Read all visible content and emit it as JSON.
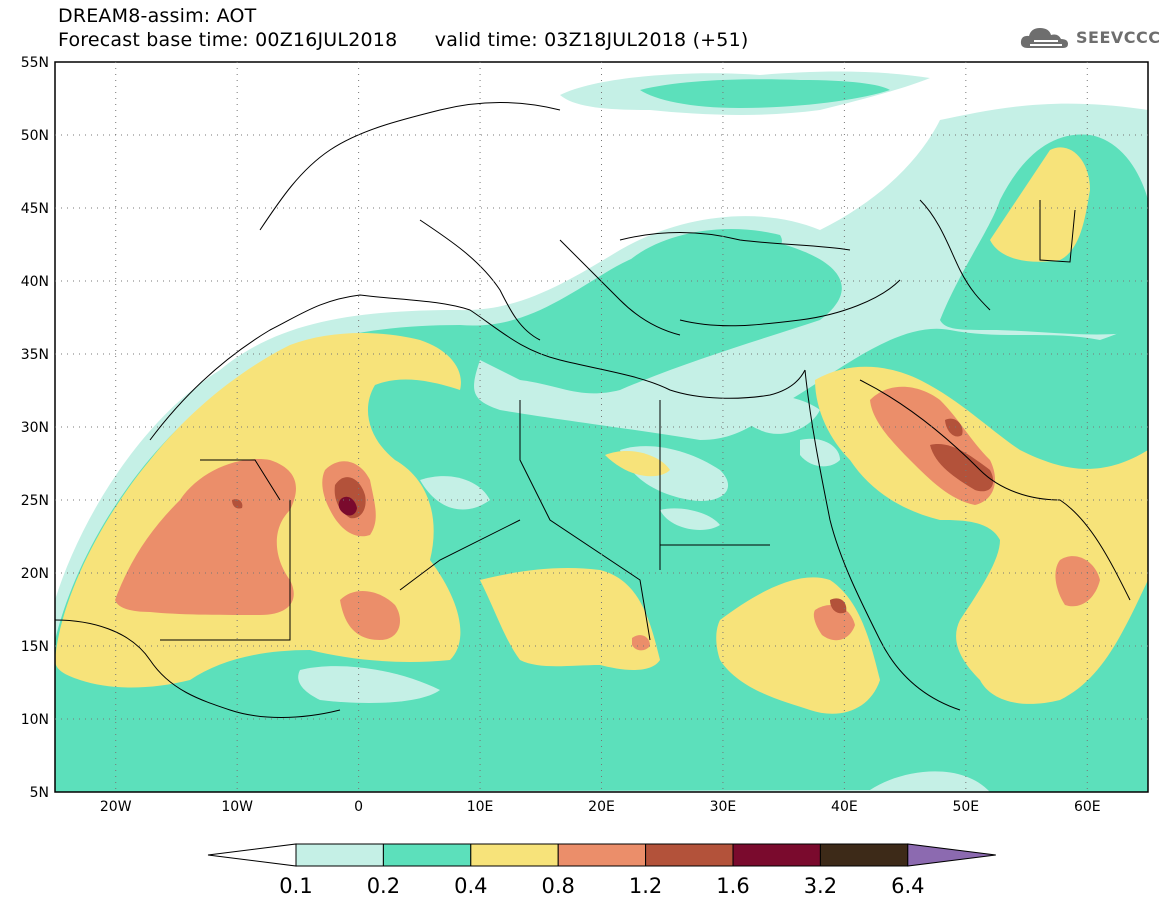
{
  "header": {
    "title": "DREAM8-assim: AOT",
    "base_time": "Forecast base time: 00Z16JUL2018",
    "valid_time": "valid time: 03Z18JUL2018 (+51)"
  },
  "logo": {
    "text": "SEEVCCC",
    "icon": "cloud-icon"
  },
  "map": {
    "lat_labels": [
      "55N",
      "50N",
      "45N",
      "40N",
      "35N",
      "30N",
      "25N",
      "20N",
      "15N",
      "10N",
      "5N"
    ],
    "lon_labels": [
      "20W",
      "10W",
      "0",
      "10E",
      "20E",
      "30E",
      "40E",
      "50E",
      "60E"
    ],
    "lon_range": [
      -25,
      65
    ],
    "lat_range": [
      5,
      55
    ]
  },
  "colorbar": {
    "labels": [
      "0.1",
      "0.2",
      "0.4",
      "0.8",
      "1.2",
      "1.6",
      "3.2",
      "6.4"
    ],
    "colors": [
      "#ffffff",
      "#c5f0e6",
      "#5ce0bb",
      "#f7e37a",
      "#eb8e6a",
      "#b3523a",
      "#7a0a2d",
      "#3d2a18",
      "#8c6ab0"
    ]
  },
  "palette": {
    "c01": "#c5f0e6",
    "c02": "#5ce0bb",
    "c04": "#f7e37a",
    "c08": "#eb8e6a",
    "c12": "#b3523a",
    "c16": "#7a0a2d"
  }
}
